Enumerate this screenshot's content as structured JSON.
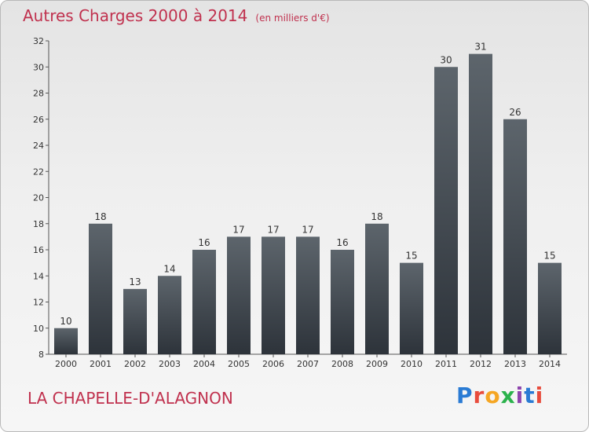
{
  "header": {
    "title": "Autres Charges 2000 à 2014",
    "unit": "(en milliers d'€)"
  },
  "footer": {
    "city": "LA CHAPELLE-D'ALAGNON",
    "logo": "Proxiti"
  },
  "colors": {
    "title": "#c0314e",
    "bar_top": "#5d656c",
    "bar_bottom": "#2d333a"
  },
  "chart_data": {
    "type": "bar",
    "title": "Autres Charges 2000 à 2014",
    "subtitle": "(en milliers d'€)",
    "xlabel": "",
    "ylabel": "",
    "categories": [
      "2000",
      "2001",
      "2002",
      "2003",
      "2004",
      "2005",
      "2006",
      "2007",
      "2008",
      "2009",
      "2010",
      "2011",
      "2012",
      "2013",
      "2014"
    ],
    "values": [
      10,
      18,
      13,
      14,
      16,
      17,
      17,
      17,
      16,
      18,
      15,
      30,
      31,
      26,
      15
    ],
    "ylim": [
      8,
      32
    ],
    "yticks": [
      8,
      10,
      12,
      14,
      16,
      18,
      20,
      22,
      24,
      26,
      28,
      30,
      32
    ],
    "grid": false,
    "legend": "none"
  }
}
